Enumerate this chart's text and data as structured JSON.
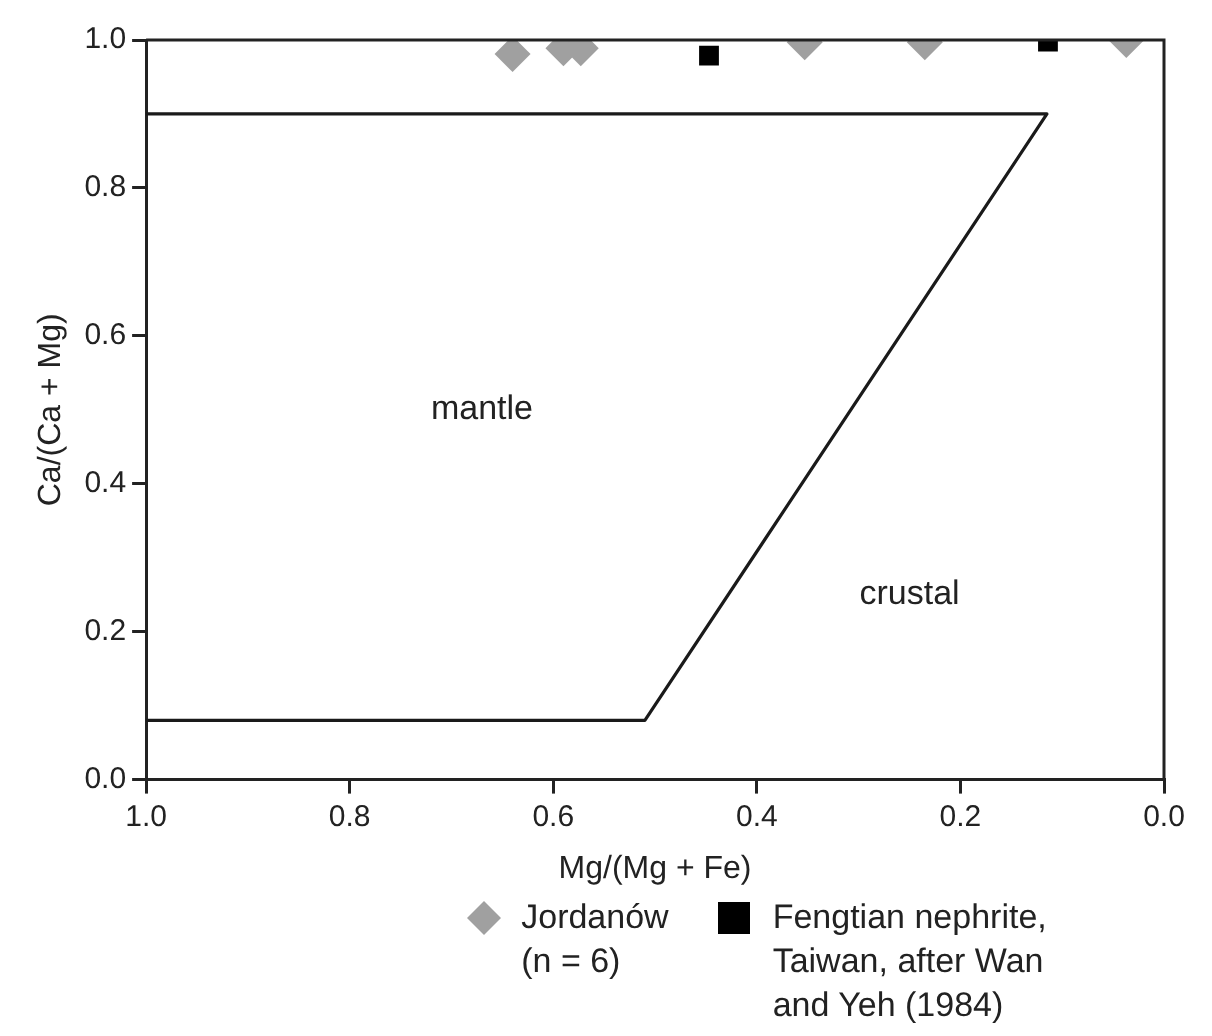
{
  "chart_data": {
    "type": "scatter",
    "xlabel": "Mg/(Mg + Fe)",
    "ylabel": "Ca/(Ca + Mg)",
    "xlim": [
      1.0,
      0.0
    ],
    "xticks": [
      {
        "value": 1,
        "label": "1.0"
      },
      0.8,
      0.6,
      0.4,
      0.2,
      {
        "value": 0,
        "label": "0.0"
      }
    ],
    "ylim": [
      0.0,
      1.0
    ],
    "yticks": [
      {
        "value": 0,
        "label": "0.0"
      },
      0.2,
      0.4,
      0.6,
      0.8,
      {
        "value": 1,
        "label": "1.0"
      }
    ],
    "grid": false,
    "legend": "bottom",
    "series": [
      {
        "name": "Jordanów\n(n = 6)",
        "marker": "diamond",
        "color": "#a0a0a0",
        "x": [
          0.64,
          0.59,
          0.573,
          0.353,
          0.235,
          0.037
        ],
        "values": [
          0.981,
          0.989,
          0.989,
          0.997,
          0.997,
          1.0
        ]
      },
      {
        "name": "Fengtian nephrite,\nTaiwan, after Wan\nand Yeh (1984)",
        "marker": "square",
        "color": "#000000",
        "x": [
          0.447,
          0.114
        ],
        "values": [
          0.979,
          0.998
        ]
      },
      {
        "type": "line",
        "marker": "none",
        "color": "#1a1a1a",
        "x": [
          1.0,
          0.115,
          0.51,
          1.0
        ],
        "values": [
          0.9,
          0.9,
          0.08,
          0.08
        ]
      }
    ],
    "annotations": [
      "mantle",
      "crustal"
    ]
  }
}
